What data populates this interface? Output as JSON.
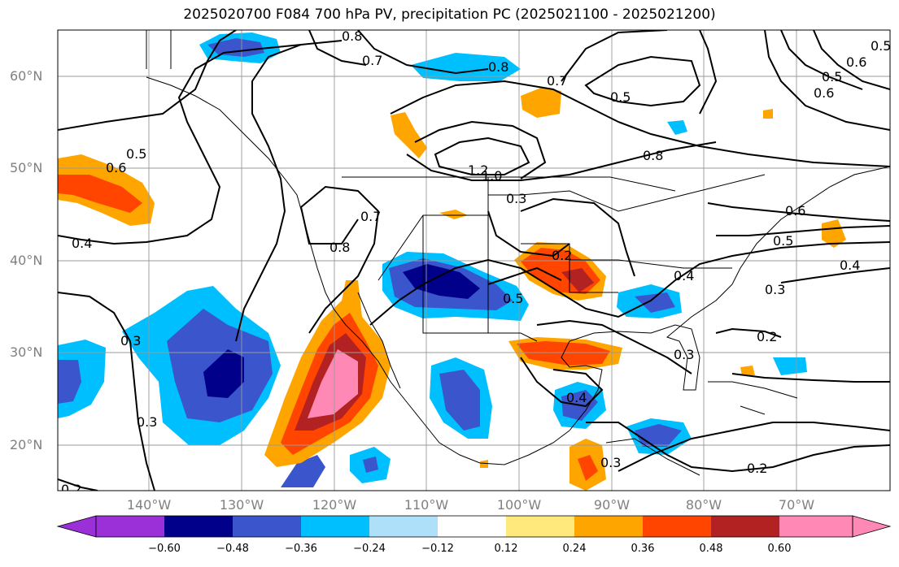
{
  "title": "2025020700 F084 700 hPa PV, precipitation PC (2025021100 - 2025021200)",
  "lat_labels": [
    "60°N",
    "50°N",
    "40°N",
    "30°N",
    "20°N"
  ],
  "lon_labels": [
    "140°W",
    "130°W",
    "120°W",
    "110°W",
    "100°W",
    "90°W",
    "80°W",
    "70°W"
  ],
  "colorbar": {
    "ticks": [
      "−0.60",
      "−0.48",
      "−0.36",
      "−0.24",
      "−0.12",
      "0.12",
      "0.24",
      "0.36",
      "0.48",
      "0.60"
    ],
    "colors": [
      "#9b30d9",
      "#00008b",
      "#3b55cc",
      "#00bfff",
      "#aee0fa",
      "#ffffff",
      "#ffe87c",
      "#ffa500",
      "#ff4500",
      "#b22222",
      "#ff88b4"
    ]
  },
  "contour_labels": [
    "0.8",
    "0.7",
    "0.8",
    "0.5",
    "0.7",
    "0.5",
    "0.6",
    "0.5",
    "0.6",
    "0.5",
    "0.6",
    "0.4",
    "1.2",
    "1.0",
    "0.8",
    "0.3",
    "0.6",
    "0.5",
    "0.7",
    "0.8",
    "0.4",
    "0.2",
    "0.5",
    "0.4",
    "0.3",
    "0.2",
    "0.3",
    "0.4",
    "0.2",
    "0.3",
    "0.3",
    "0.3",
    "0.2"
  ]
}
